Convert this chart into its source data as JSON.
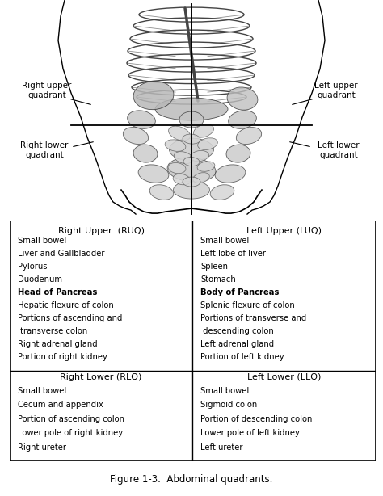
{
  "title": "Figure 1-3.  Abdominal quadrants.",
  "title_fontsize": 8.5,
  "bg_color": "#ffffff",
  "quadrant_labels": {
    "right_upper": "Right upper\nquadrant",
    "left_upper": "Left upper\nquadrant",
    "right_lower": "Right lower\nquadrant",
    "left_lower": "Left lower\nquadrant"
  },
  "ruq_header": "Right Upper  (RUQ)",
  "luq_header": "Left Upper (LUQ)",
  "rlq_header": "Right Lower (RLQ)",
  "llq_header": "Left Lower (LLQ)",
  "ruq_items": [
    "Small bowel",
    "Liver and Gallbladder",
    "Pylorus",
    "Duodenum",
    "Head of Pancreas",
    "Hepatic flexure of colon",
    "Portions of ascending and",
    " transverse colon",
    "Right adrenal gland",
    "Portion of right kidney"
  ],
  "luq_items": [
    "Small bowel",
    "Left lobe of liver",
    "Spleen",
    "Stomach",
    "Body of Pancreas",
    "Splenic flexure of colon",
    "Portions of transverse and",
    " descending colon",
    "Left adrenal gland",
    "Portion of left kidney"
  ],
  "rlq_items": [
    "Small bowel",
    "Cecum and appendix",
    "Portion of ascending colon",
    "Lower pole of right kidney",
    "Right ureter"
  ],
  "llq_items": [
    "Small bowel",
    "Sigmoid colon",
    "Portion of descending colon",
    "Lower pole of left kidney",
    "Left ureter"
  ],
  "bold_items_ruq": [
    "Head of Pancreas"
  ],
  "bold_items_luq": [
    "Body of Pancreas"
  ],
  "text_fontsize": 7.2,
  "header_fontsize": 8.0,
  "label_fontsize": 7.5,
  "line_color": "#000000",
  "body_edge": "#333333",
  "rib_color": "#444444",
  "organ_fill": "#c8c8c8",
  "organ_edge": "#333333"
}
